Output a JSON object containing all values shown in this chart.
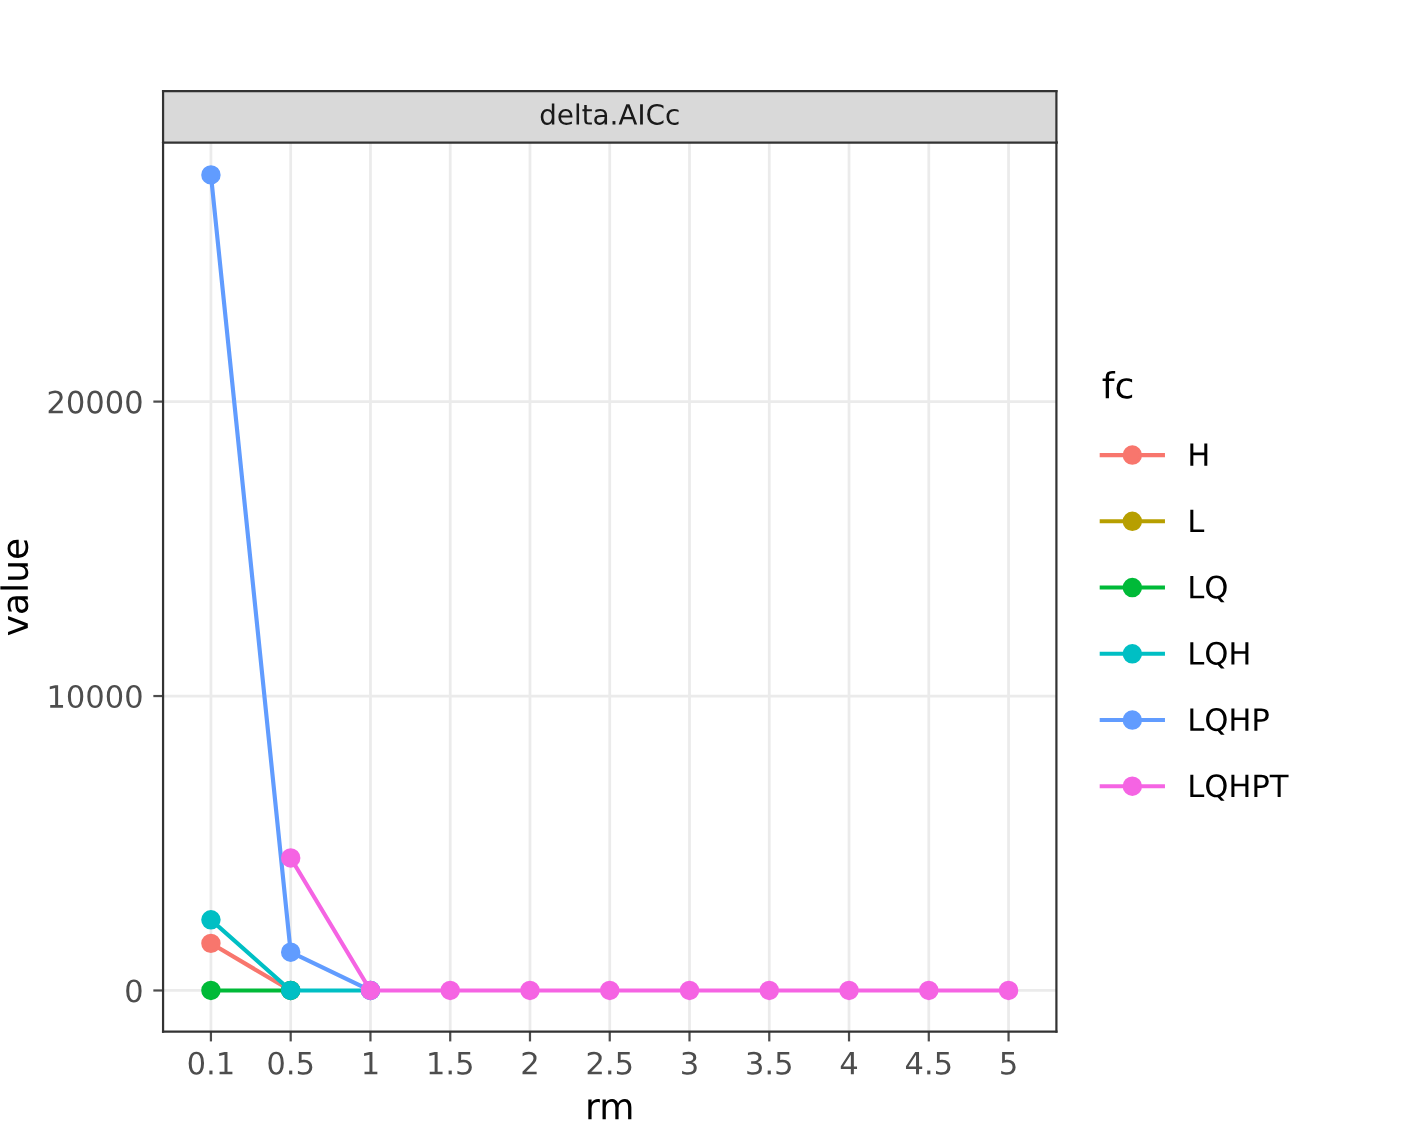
{
  "chart_data": {
    "type": "line",
    "title": "delta.AICc",
    "xlabel": "rm",
    "ylabel": "value",
    "legend_title": "fc",
    "categories": [
      "0.1",
      "0.5",
      "1",
      "1.5",
      "2",
      "2.5",
      "3",
      "3.5",
      "4",
      "4.5",
      "5"
    ],
    "series": [
      {
        "name": "H",
        "color": "#f8766d",
        "values": [
          1600,
          0,
          null,
          null,
          null,
          null,
          null,
          null,
          null,
          null,
          null
        ]
      },
      {
        "name": "L",
        "color": "#b79f00",
        "values": [
          null,
          null,
          null,
          null,
          null,
          null,
          null,
          null,
          null,
          null,
          null
        ]
      },
      {
        "name": "LQ",
        "color": "#00ba38",
        "values": [
          0,
          0,
          null,
          null,
          null,
          null,
          null,
          null,
          null,
          null,
          null
        ]
      },
      {
        "name": "LQH",
        "color": "#00bfc4",
        "values": [
          2400,
          0,
          0,
          null,
          null,
          null,
          null,
          null,
          null,
          null,
          null
        ]
      },
      {
        "name": "LQHP",
        "color": "#619cff",
        "values": [
          27700,
          1300,
          0,
          null,
          null,
          null,
          null,
          null,
          null,
          null,
          null
        ]
      },
      {
        "name": "LQHPT",
        "color": "#f564e3",
        "values": [
          null,
          4500,
          0,
          0,
          0,
          0,
          0,
          0,
          0,
          0,
          0
        ]
      }
    ],
    "ylim": [
      -1400,
      28800
    ],
    "yticks": [
      0,
      10000,
      20000
    ],
    "grid": true,
    "legend": "right",
    "marker": "circle",
    "line_style": "solid"
  }
}
